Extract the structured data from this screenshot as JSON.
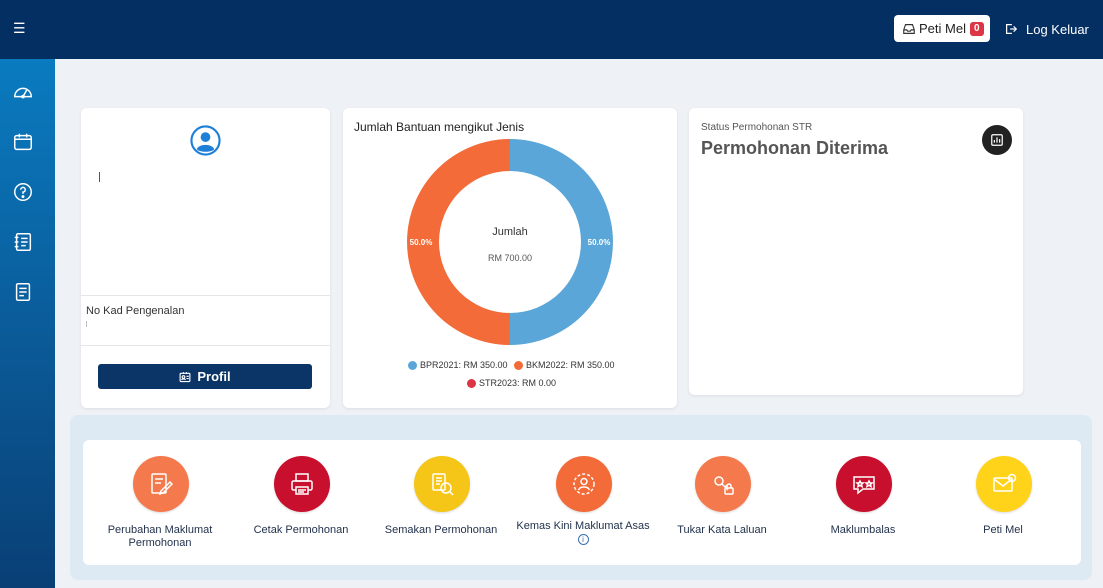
{
  "header": {
    "menu_icon": "hamburger-icon",
    "mailbox_label": "Peti Mel",
    "mailbox_count": "0",
    "logout_label": "Log Keluar"
  },
  "sidebar": {
    "items": [
      {
        "icon": "dashboard-icon"
      },
      {
        "icon": "calendar-icon"
      },
      {
        "icon": "help-icon"
      },
      {
        "icon": "notebook-icon"
      },
      {
        "icon": "document-icon"
      }
    ]
  },
  "profile": {
    "id_label": "No Kad Pengenalan",
    "profile_button": "Profil"
  },
  "chart_section": {
    "title": "Jumlah Bantuan mengikut Jenis",
    "center_label": "Jumlah",
    "center_value": "RM 700.00"
  },
  "chart_data": {
    "type": "pie",
    "title": "Jumlah Bantuan mengikut Jenis",
    "categories": [
      "BPR2021",
      "BKM2022",
      "STR2023"
    ],
    "values": [
      350.0,
      350.0,
      0.0
    ],
    "percent_labels": [
      "50.0%",
      "50.0%",
      ""
    ],
    "legend": [
      "BPR2021: RM 350.00",
      "BKM2022: RM 350.00",
      "STR2023: RM 0.00"
    ],
    "colors": [
      "#5aa6d8",
      "#f26b38",
      "#dc3545"
    ],
    "donut": true,
    "legend_position": "bottom"
  },
  "status": {
    "label": "Status Permohonan STR",
    "value": "Permohonan Diterima",
    "icon": "chart-icon"
  },
  "quick_menu": [
    {
      "label": "Perubahan Maklumat Permohonan",
      "icon": "edit-form-icon",
      "color": "#f47a4d"
    },
    {
      "label": "Cetak Permohonan",
      "icon": "printer-icon",
      "color": "#c8102e"
    },
    {
      "label": "Semakan Permohonan",
      "icon": "document-search-icon",
      "color": "#f5c518"
    },
    {
      "label": "Kemas Kini Maklumat Asas",
      "icon": "profile-gear-icon",
      "color": "#f26b38",
      "info": "i"
    },
    {
      "label": "Tukar Kata Laluan",
      "icon": "lock-key-icon",
      "color": "#f47a4d"
    },
    {
      "label": "Maklumbalas",
      "icon": "feedback-icon",
      "color": "#c8102e"
    },
    {
      "label": "Peti Mel",
      "icon": "mail-icon",
      "color": "#ffd31a"
    }
  ]
}
